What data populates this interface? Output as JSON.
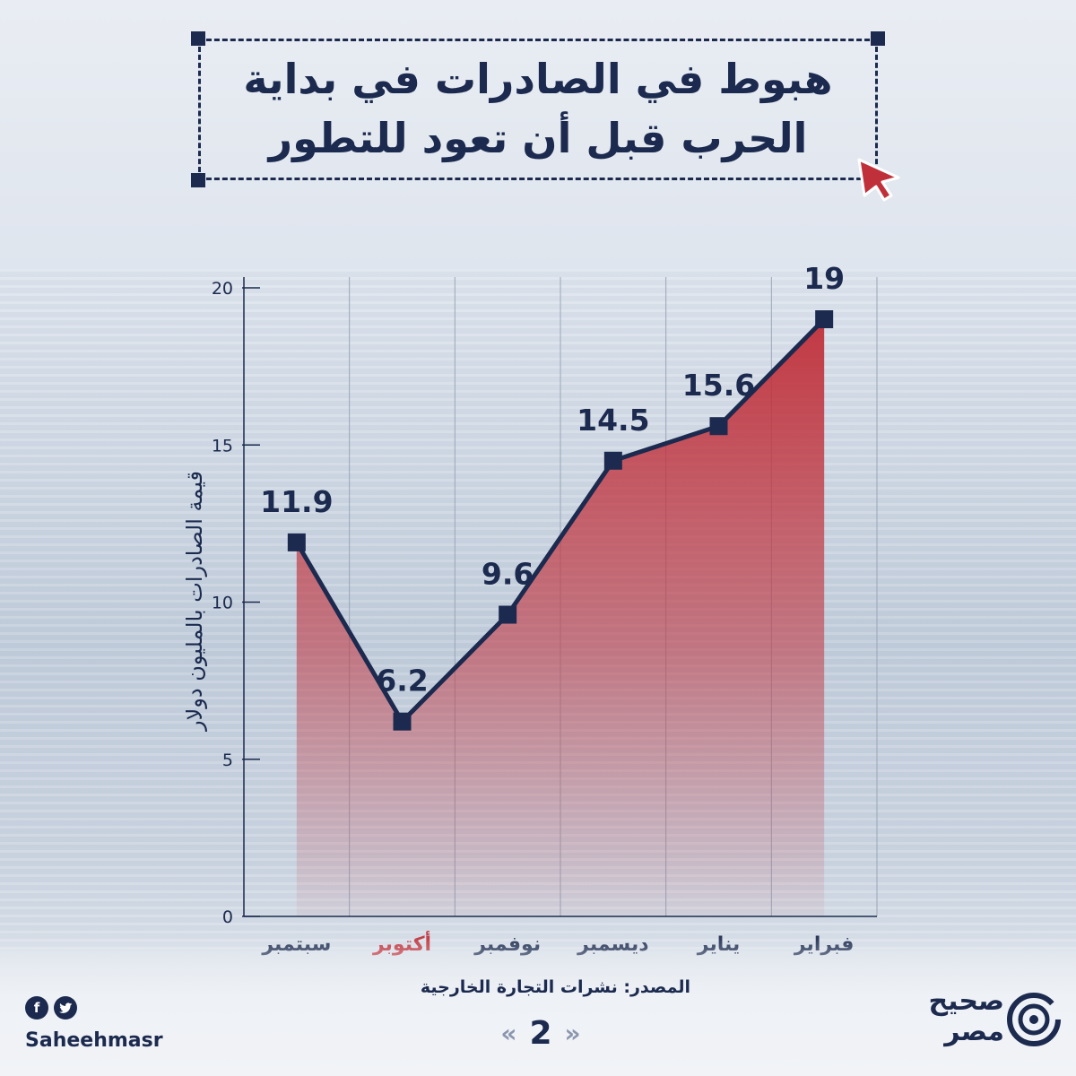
{
  "header": {
    "title_lines": [
      "هبوط في الصادرات في بداية",
      "الحرب قبل أن تعود للتطور"
    ]
  },
  "chart_data": {
    "type": "line",
    "fill": "area",
    "categories": [
      "سبتمبر",
      "أكتوبر",
      "نوفمبر",
      "ديسمبر",
      "يناير",
      "فبراير"
    ],
    "values": [
      11.9,
      6.2,
      9.6,
      14.5,
      15.6,
      19
    ],
    "data_labels": [
      "11.9",
      "6.2",
      "9.6",
      "14.5",
      "15.6",
      "19"
    ],
    "highlight_category": "أكتوبر",
    "ylabel": "قيمة الصادرات بالمليون دولار",
    "ylim": [
      0,
      20
    ],
    "yticks": [
      0,
      5,
      10,
      15,
      20
    ],
    "grid": "vertical",
    "colors": {
      "line": "#1b2a4e",
      "area": "#c0303a",
      "highlight": "#c0303a",
      "text": "#1b2a4e"
    }
  },
  "footer": {
    "source": "المصدر: نشرات التجارة الخارجية",
    "page_number": "2",
    "social_handle": "Saheehmasr",
    "social_icons": [
      "facebook-icon",
      "twitter-icon"
    ],
    "brand_lines": [
      "صحيح",
      "مصر"
    ]
  }
}
